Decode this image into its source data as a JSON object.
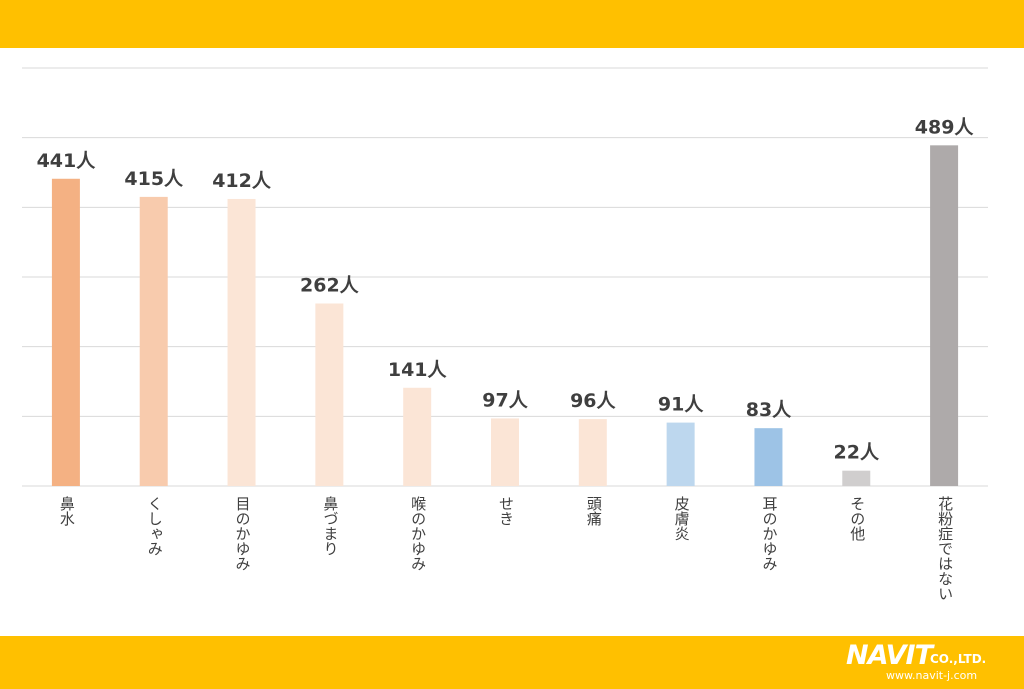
{
  "chart_data": {
    "type": "bar",
    "title": "",
    "xlabel": "",
    "ylabel": "",
    "ylim": [
      0,
      600
    ],
    "grid": true,
    "unit_suffix": "人",
    "categories": [
      "鼻水",
      "くしゃみ",
      "目のかゆみ",
      "鼻づまり",
      "喉のかゆみ",
      "せき",
      "頭痛",
      "皮膚炎",
      "耳のかゆみ",
      "その他",
      "花粉症ではない"
    ],
    "values": [
      441,
      415,
      412,
      262,
      141,
      97,
      96,
      91,
      83,
      22,
      489
    ],
    "value_labels": [
      "441人",
      "415人",
      "412人",
      "262人",
      "141人",
      "97人",
      "96人",
      "91人",
      "83人",
      "22人",
      "489人"
    ],
    "colors": [
      "#f4b183",
      "#f8cbad",
      "#fbe5d6",
      "#fbe5d6",
      "#fbe5d6",
      "#fbe5d6",
      "#fbe5d6",
      "#bdd7ee",
      "#9dc3e6",
      "#d0cece",
      "#aeaaaa"
    ]
  },
  "logo": {
    "brand": "NAVIT",
    "suffix": "CO.,LTD.",
    "url": "www.navit-j.com"
  }
}
